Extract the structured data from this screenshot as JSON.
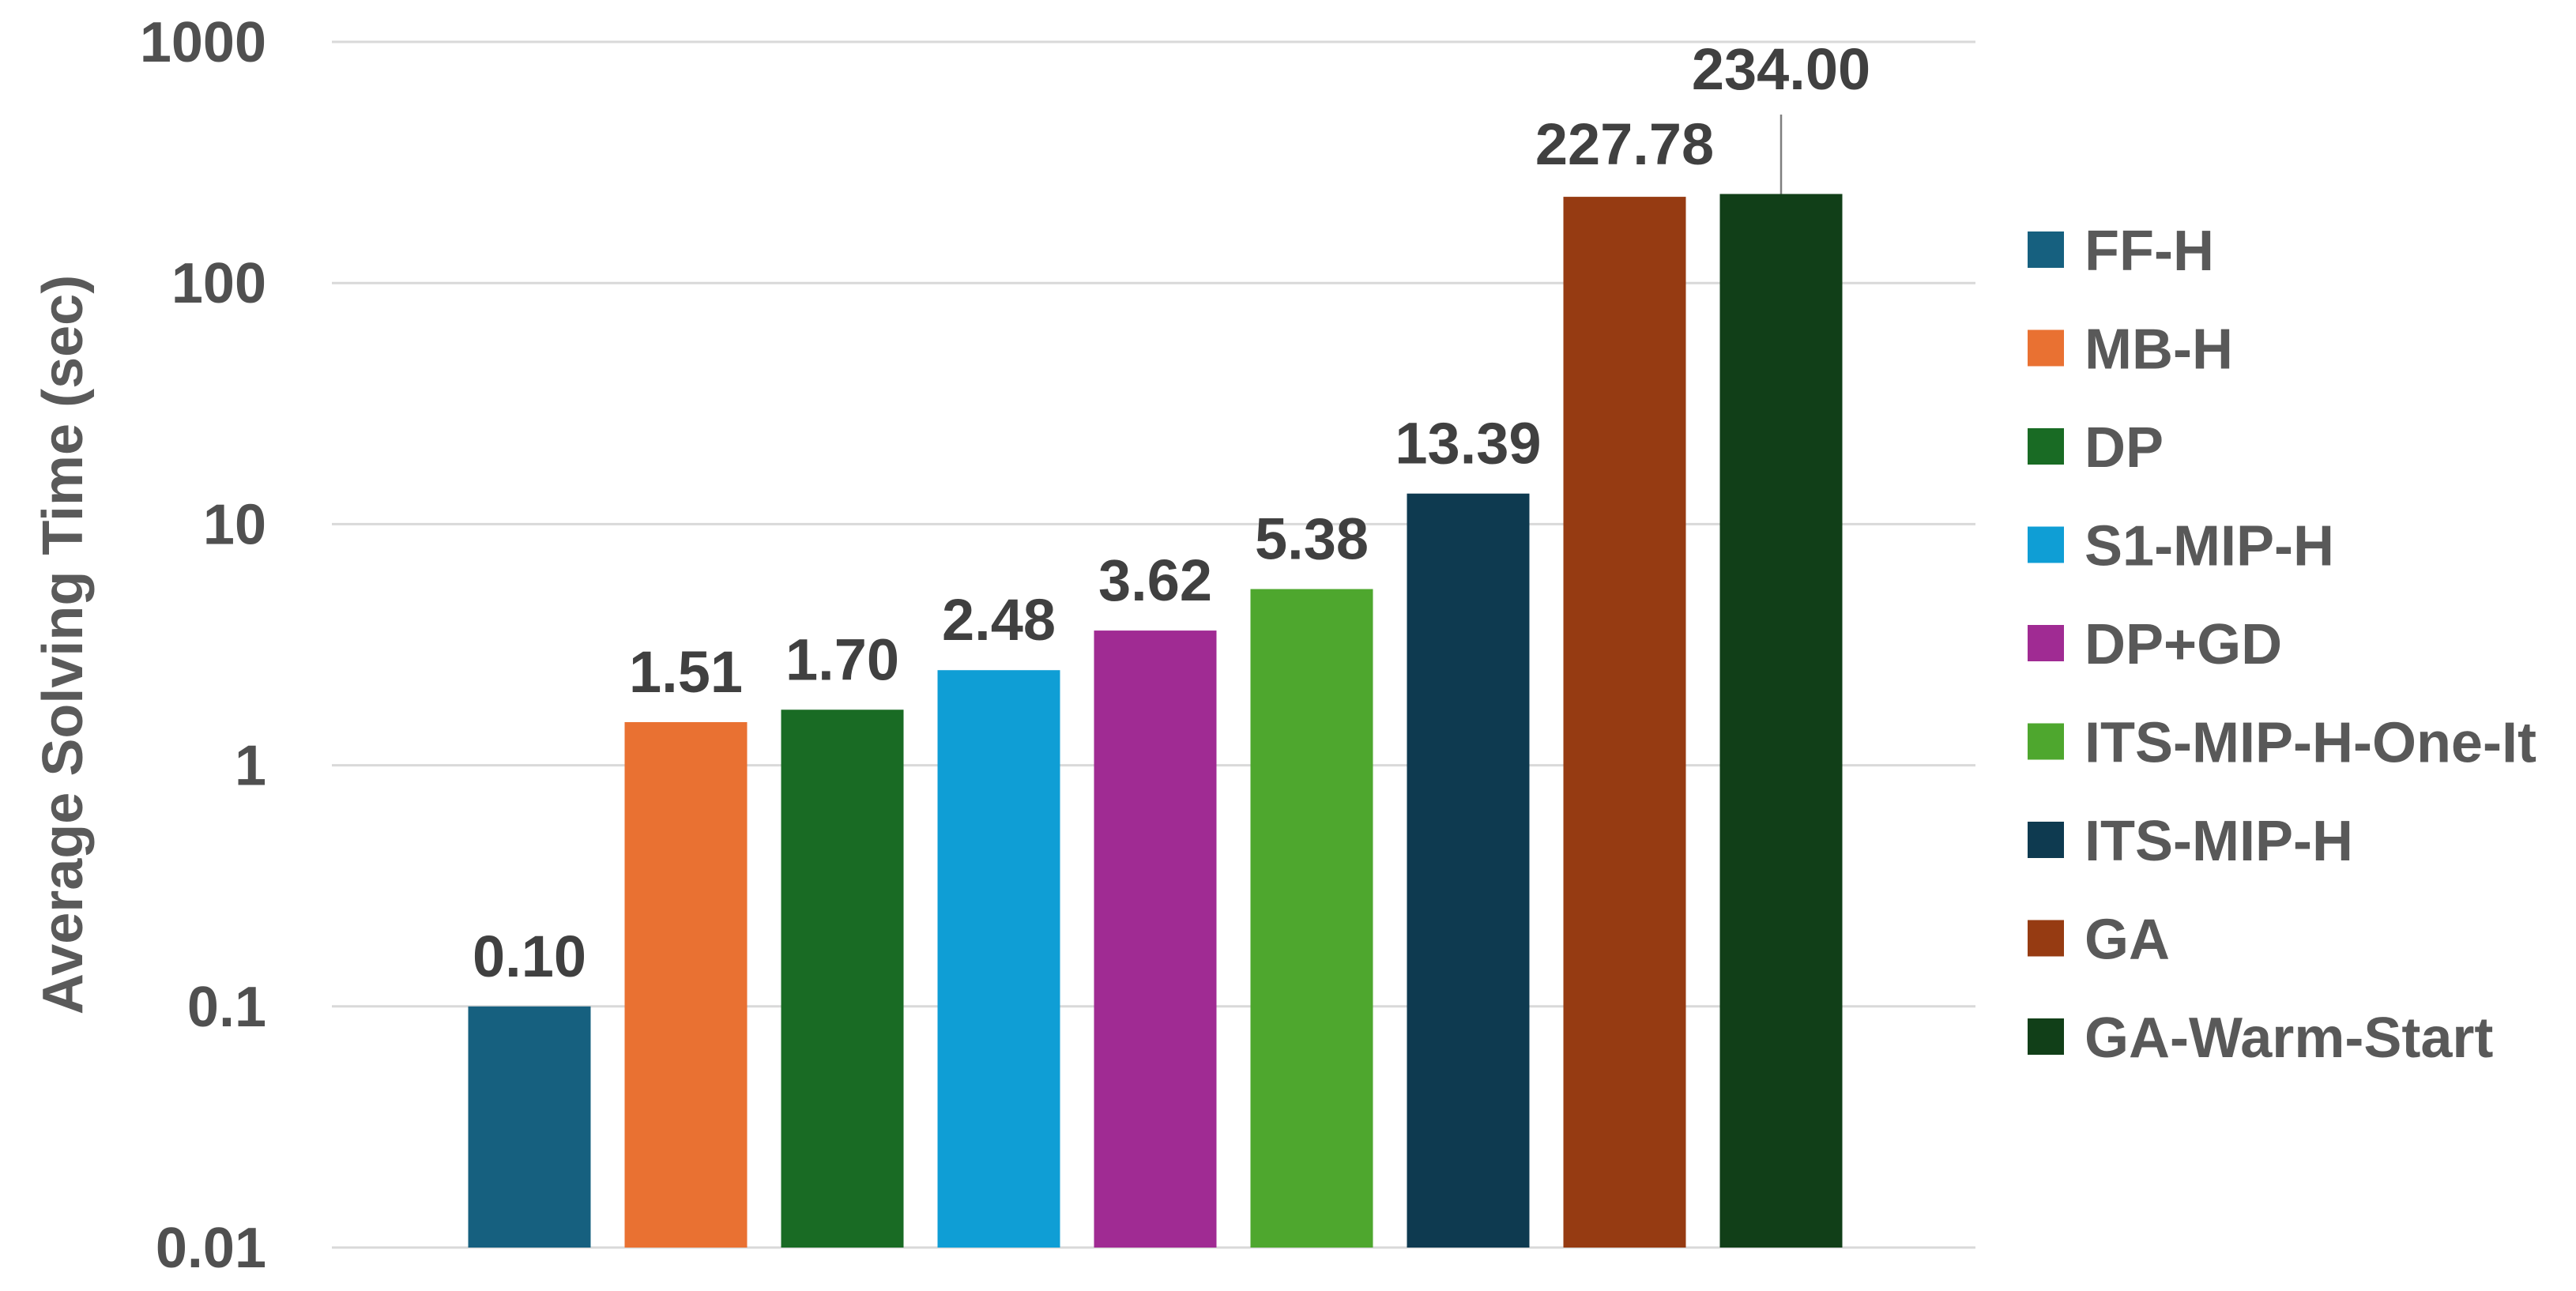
{
  "chart_data": {
    "type": "bar",
    "title": "",
    "xlabel": "",
    "ylabel": "Average Solving Time (sec)",
    "yscale": "log",
    "ylim": [
      0.01,
      1000
    ],
    "yticks": [
      {
        "value": 0.01,
        "label": "0.01"
      },
      {
        "value": 0.1,
        "label": "0.1"
      },
      {
        "value": 1,
        "label": "1"
      },
      {
        "value": 10,
        "label": "10"
      },
      {
        "value": 100,
        "label": "100"
      },
      {
        "value": 1000,
        "label": "1000"
      }
    ],
    "grid": true,
    "legend_position": "right",
    "categories": [
      "FF-H",
      "MB-H",
      "DP",
      "S1-MIP-H",
      "DP+GD",
      "ITS-MIP-H-One-It",
      "ITS-MIP-H",
      "GA",
      "GA-Warm-Start"
    ],
    "values": [
      0.1,
      1.51,
      1.7,
      2.48,
      3.62,
      5.38,
      13.39,
      227.78,
      234.0
    ],
    "data_labels": [
      "0.10",
      "1.51",
      "1.70",
      "2.48",
      "3.62",
      "5.38",
      "13.39",
      "227.78",
      "234.00"
    ],
    "colors": [
      "#16607f",
      "#e97132",
      "#196b24",
      "#0f9ed5",
      "#a02b93",
      "#4ea72e",
      "#0e3a50",
      "#963b12",
      "#113f18"
    ]
  }
}
